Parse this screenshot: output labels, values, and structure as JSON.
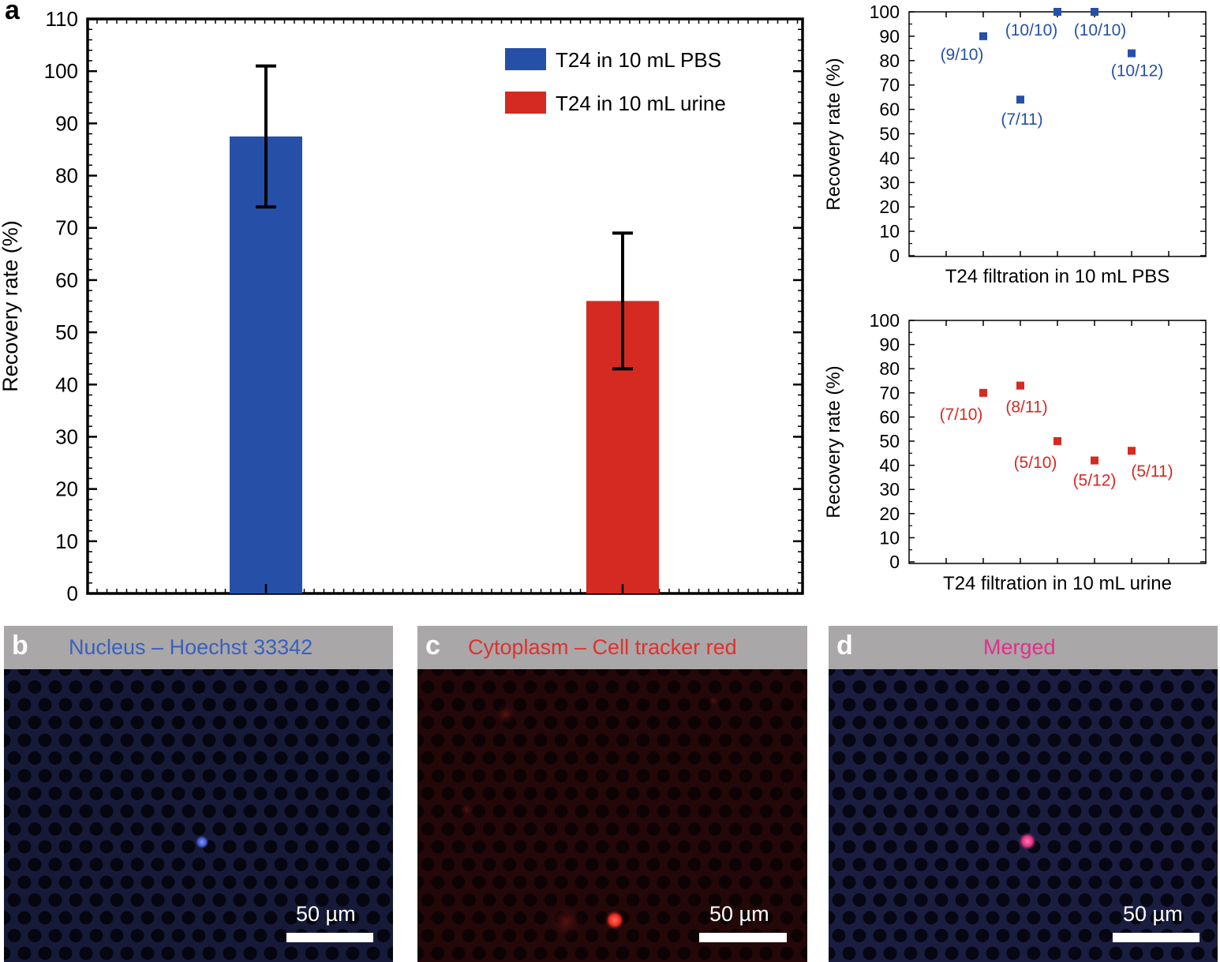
{
  "chart_data": [
    {
      "type": "bar",
      "panel": "a",
      "ylabel": "Recovery rate (%)",
      "xlabel": "",
      "ylim": [
        0,
        110
      ],
      "yticks": [
        0,
        10,
        20,
        30,
        40,
        50,
        60,
        70,
        80,
        90,
        100,
        110
      ],
      "categories": [
        "T24 in 10 mL PBS",
        "T24 in 10 mL urine"
      ],
      "series": [
        {
          "name": "T24 in 10 mL PBS",
          "value": 87.5,
          "error_low": 74,
          "error_high": 101,
          "color": "#2650a8"
        },
        {
          "name": "T24 in 10 mL urine",
          "value": 56,
          "error_low": 43,
          "error_high": 69,
          "color": "#d42a22"
        }
      ],
      "legend_position": "top-right"
    },
    {
      "type": "scatter",
      "ylabel": "Recovery rate (%)",
      "xlabel": "T24 filtration in 10 mL PBS",
      "ylim": [
        0,
        100
      ],
      "yticks": [
        0,
        10,
        20,
        30,
        40,
        50,
        60,
        70,
        80,
        90,
        100
      ],
      "color": "#2650a8",
      "points": [
        {
          "x": 1,
          "y": 90,
          "label": "(9/10)"
        },
        {
          "x": 2,
          "y": 64,
          "label": "(7/11)"
        },
        {
          "x": 3,
          "y": 100,
          "label": "(10/10)"
        },
        {
          "x": 4,
          "y": 100,
          "label": "(10/10)"
        },
        {
          "x": 5,
          "y": 83,
          "label": "(10/12)"
        }
      ]
    },
    {
      "type": "scatter",
      "ylabel": "Recovery rate (%)",
      "xlabel": "T24 filtration in 10 mL urine",
      "ylim": [
        0,
        100
      ],
      "yticks": [
        0,
        10,
        20,
        30,
        40,
        50,
        60,
        70,
        80,
        90,
        100
      ],
      "color": "#d42a22",
      "points": [
        {
          "x": 1,
          "y": 70,
          "label": "(7/10)"
        },
        {
          "x": 2,
          "y": 73,
          "label": "(8/11)"
        },
        {
          "x": 3,
          "y": 50,
          "label": "(5/10)"
        },
        {
          "x": 4,
          "y": 42,
          "label": "(5/12)"
        },
        {
          "x": 5,
          "y": 46,
          "label": "(5/11)"
        }
      ]
    }
  ],
  "panels": {
    "a": "a",
    "b": {
      "letter": "b",
      "title": "Nucleus – Hoechst 33342",
      "title_color": "#3a5fc0",
      "scale": "50 µm"
    },
    "c": {
      "letter": "c",
      "title": "Cytoplasm – Cell tracker red",
      "title_color": "#e03030",
      "scale": "50 µm"
    },
    "d": {
      "letter": "d",
      "title": "Merged",
      "title_color": "#e0308a",
      "scale": "50 µm"
    }
  }
}
